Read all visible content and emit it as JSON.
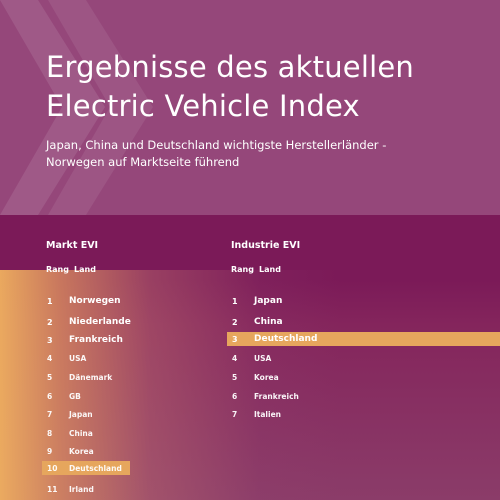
{
  "header": {
    "title_line1": "Ergebnisse des aktuellen",
    "title_line2": "Electric Vehicle Index",
    "subtitle_line1": "Japan, China und Deutschland wichtigste Herstellerländer -",
    "subtitle_line2": "Norwegen auf Marktseite führend"
  },
  "markt": {
    "title": "Markt EVI",
    "col_rank": "Rang",
    "col_land": "Land",
    "rows": [
      {
        "rank": "1",
        "land": "Norwegen"
      },
      {
        "rank": "2",
        "land": "Niederlande"
      },
      {
        "rank": "3",
        "land": "Frankreich"
      },
      {
        "rank": "4",
        "land": "USA"
      },
      {
        "rank": "5",
        "land": "Dänemark"
      },
      {
        "rank": "6",
        "land": "GB"
      },
      {
        "rank": "7",
        "land": "Japan"
      },
      {
        "rank": "8",
        "land": "China"
      },
      {
        "rank": "9",
        "land": "Korea"
      },
      {
        "rank": "10",
        "land": "Deutschland"
      },
      {
        "rank": "11",
        "land": "Irland"
      }
    ]
  },
  "industrie": {
    "title": "Industrie EVI",
    "col_rank": "Rang",
    "col_land": "Land",
    "rows": [
      {
        "rank": "1",
        "land": "Japan"
      },
      {
        "rank": "2",
        "land": "China"
      },
      {
        "rank": "3",
        "land": "Deutschland"
      },
      {
        "rank": "4",
        "land": "USA"
      },
      {
        "rank": "5",
        "land": "Korea"
      },
      {
        "rank": "6",
        "land": "Frankreich"
      },
      {
        "rank": "7",
        "land": "Italien"
      }
    ]
  },
  "colors": {
    "header_bg": "#95477a",
    "band_bg": "#7b1a58",
    "highlight": "#e6a65d",
    "text": "#ffffff"
  }
}
